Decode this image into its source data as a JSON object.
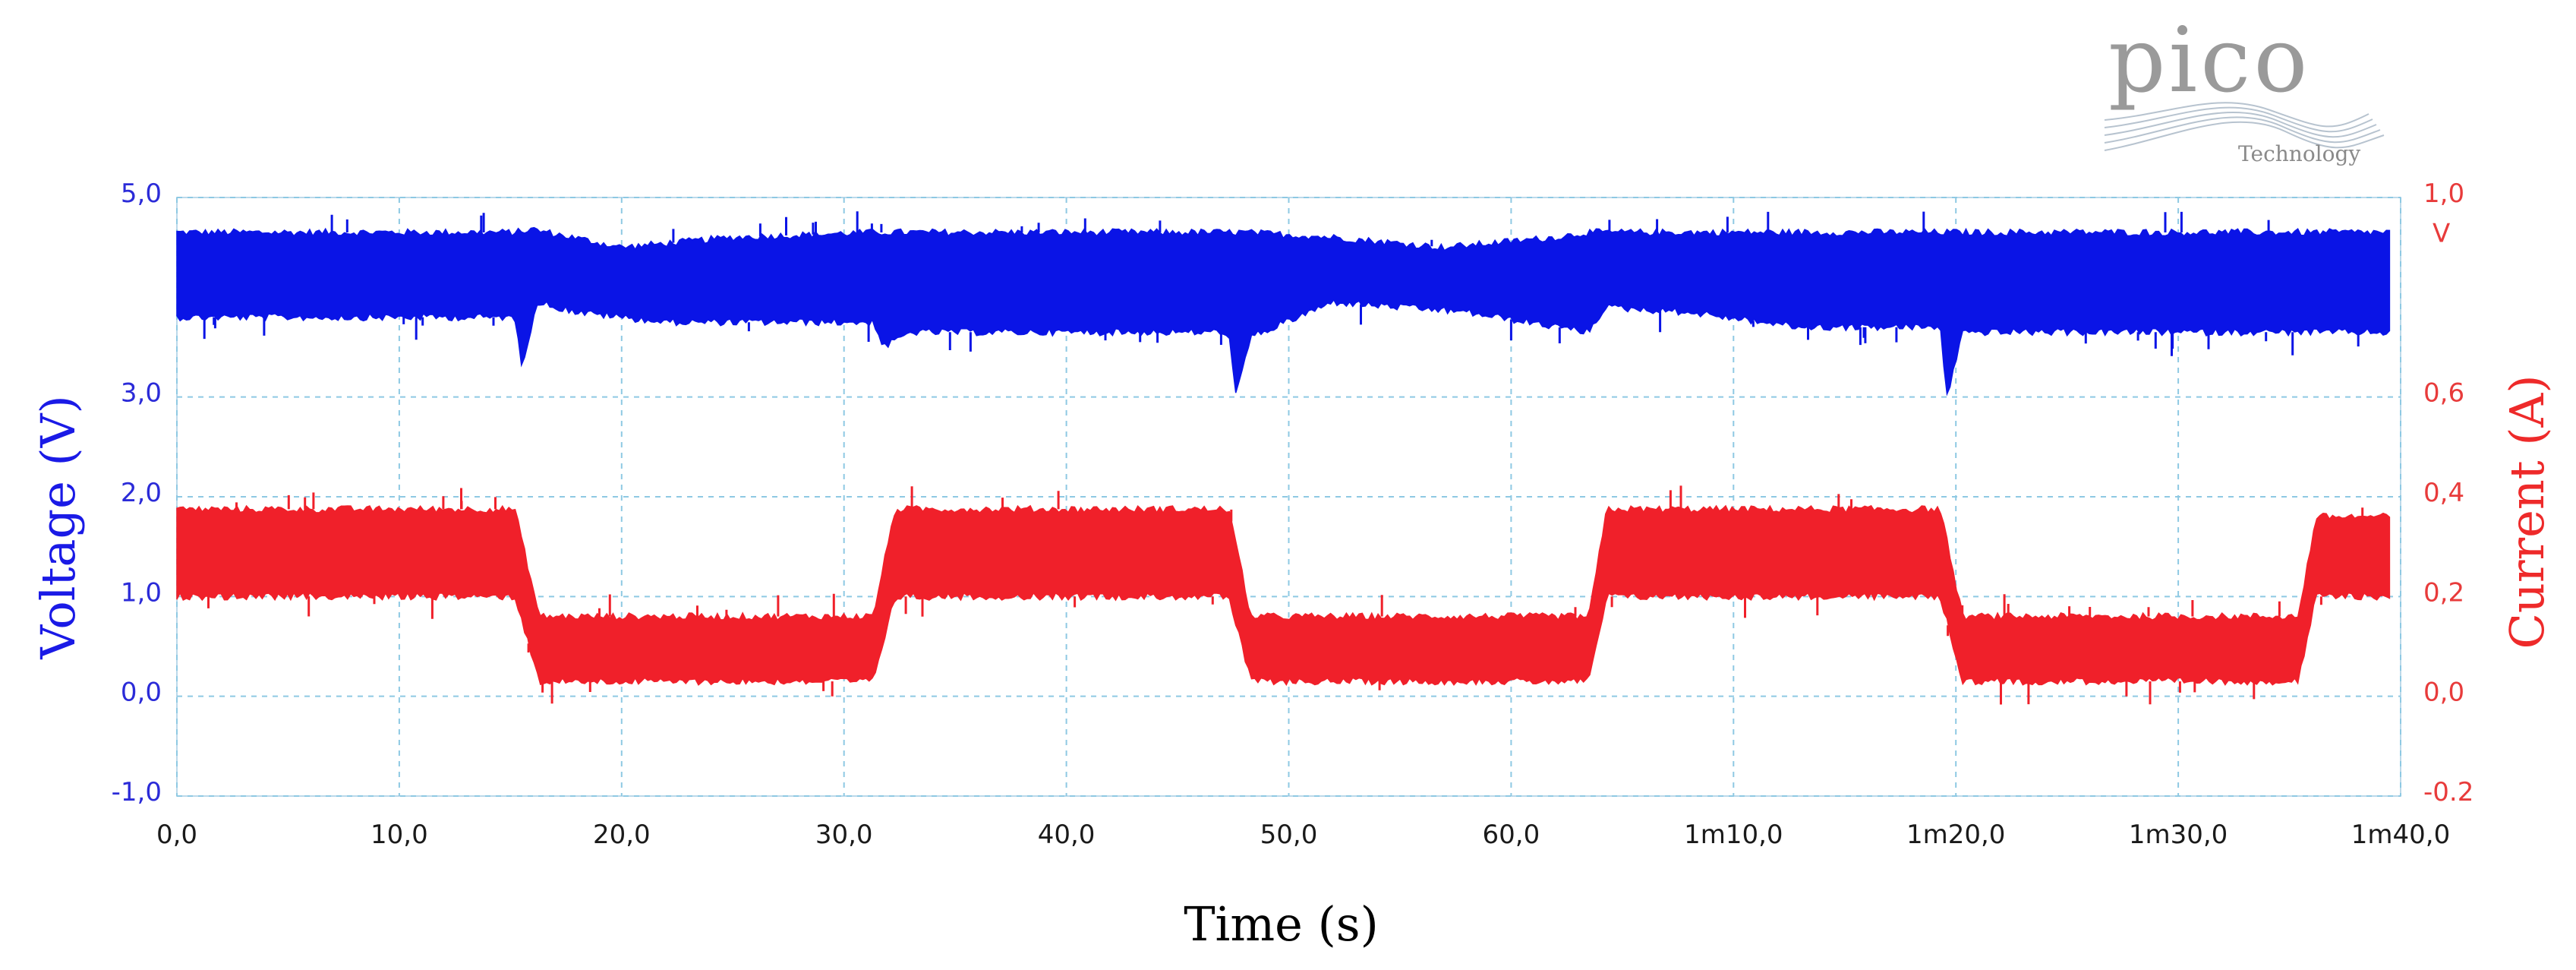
{
  "logo": {
    "word": "pico",
    "sub": "Technology"
  },
  "chart_data": {
    "type": "line",
    "xlabel": "Time (s)",
    "ylabel_left": "Voltage (V)",
    "ylabel_right": "Current (A)",
    "x_range": [
      0,
      100
    ],
    "x_ticks": [
      0,
      10,
      20,
      30,
      40,
      50,
      60,
      70,
      80,
      90,
      100
    ],
    "x_tick_labels": [
      "0,0",
      "10,0",
      "20,0",
      "30,0",
      "40,0",
      "50,0",
      "60,0",
      "1m10,0",
      "1m20,0",
      "1m30,0",
      "1m40,0"
    ],
    "y_left_range": [
      -1.0,
      5.0
    ],
    "y_left_ticks": [
      -1.0,
      0.0,
      1.0,
      2.0,
      3.0,
      5.0
    ],
    "y_left_tick_labels": [
      "-1,0",
      "0,0",
      "1,0",
      "2,0",
      "3,0",
      "5,0"
    ],
    "y_right_range": [
      -0.2,
      1.0
    ],
    "y_right_ticks": [
      -0.2,
      0.0,
      0.2,
      0.4,
      0.6,
      1.0
    ],
    "y_right_tick_labels": [
      "-0.2",
      "0,0",
      "0,2",
      "0,4",
      "0,6",
      "1,0"
    ],
    "y_right_unit_label": "V",
    "grid": true,
    "series": [
      {
        "axis": "left",
        "color": "#0a14e6",
        "upper": [
          [
            0,
            4.65
          ],
          [
            15.2,
            4.65
          ],
          [
            16.0,
            4.68
          ],
          [
            20,
            4.5
          ],
          [
            25,
            4.6
          ],
          [
            31.3,
            4.65
          ],
          [
            32,
            4.65
          ],
          [
            47.3,
            4.65
          ],
          [
            48,
            4.65
          ],
          [
            52,
            4.6
          ],
          [
            57,
            4.5
          ],
          [
            62,
            4.6
          ],
          [
            63.5,
            4.65
          ],
          [
            64,
            4.65
          ],
          [
            79.3,
            4.65
          ],
          [
            80,
            4.65
          ],
          [
            95.4,
            4.65
          ],
          [
            96,
            4.65
          ],
          [
            99.5,
            4.65
          ]
        ],
        "lower": [
          [
            0,
            3.8
          ],
          [
            15.2,
            3.8
          ],
          [
            15.5,
            3.3
          ],
          [
            16.2,
            3.95
          ],
          [
            18,
            3.85
          ],
          [
            22,
            3.75
          ],
          [
            26,
            3.75
          ],
          [
            31.3,
            3.75
          ],
          [
            31.8,
            3.5
          ],
          [
            33,
            3.65
          ],
          [
            40,
            3.65
          ],
          [
            47.3,
            3.65
          ],
          [
            47.6,
            3.0
          ],
          [
            48.3,
            3.6
          ],
          [
            52,
            3.95
          ],
          [
            58,
            3.85
          ],
          [
            63.5,
            3.65
          ],
          [
            64.2,
            3.9
          ],
          [
            68,
            3.85
          ],
          [
            73,
            3.7
          ],
          [
            79.3,
            3.7
          ],
          [
            79.6,
            3.0
          ],
          [
            80.3,
            3.65
          ],
          [
            90,
            3.65
          ],
          [
            95.4,
            3.65
          ],
          [
            96.2,
            3.65
          ],
          [
            99.5,
            3.65
          ]
        ]
      },
      {
        "axis": "right",
        "color": "#f0202a",
        "upper": [
          [
            0,
            0.375
          ],
          [
            15.2,
            0.375
          ],
          [
            16.3,
            0.16
          ],
          [
            31.3,
            0.16
          ],
          [
            32.3,
            0.375
          ],
          [
            47.3,
            0.375
          ],
          [
            48.3,
            0.16
          ],
          [
            63.5,
            0.16
          ],
          [
            64.3,
            0.375
          ],
          [
            79.3,
            0.375
          ],
          [
            80.3,
            0.16
          ],
          [
            95.4,
            0.16
          ],
          [
            96.2,
            0.36
          ],
          [
            99.5,
            0.36
          ]
        ],
        "lower": [
          [
            0,
            0.2
          ],
          [
            15.2,
            0.2
          ],
          [
            16.3,
            0.03
          ],
          [
            31.3,
            0.03
          ],
          [
            32.3,
            0.2
          ],
          [
            47.3,
            0.2
          ],
          [
            48.3,
            0.03
          ],
          [
            63.5,
            0.03
          ],
          [
            64.3,
            0.2
          ],
          [
            79.3,
            0.2
          ],
          [
            80.3,
            0.03
          ],
          [
            95.4,
            0.03
          ],
          [
            96.2,
            0.2
          ],
          [
            99.5,
            0.2
          ]
        ]
      }
    ]
  }
}
